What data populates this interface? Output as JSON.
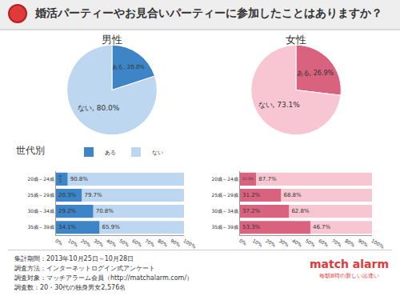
{
  "title": "婚活パーティーやお見合いパーティーに参加したことはありますか？",
  "section_label": "世代別",
  "chart_data": [
    {
      "type": "pie",
      "title": "男性",
      "categories": [
        "ある",
        "ない"
      ],
      "values": [
        20.0,
        80.0
      ],
      "value_labels": [
        "ある, 20.0%",
        "ない, 80.0%"
      ],
      "colors": [
        "#3d85c6",
        "#bcd7ef"
      ],
      "data_labels": true
    },
    {
      "type": "pie",
      "title": "女性",
      "categories": [
        "ある",
        "ない"
      ],
      "values": [
        26.9,
        73.1
      ],
      "value_labels": [
        "ある, 26.9%",
        "ない, 73.1%"
      ],
      "colors": [
        "#d9627e",
        "#f7c6d2"
      ],
      "data_labels": true
    },
    {
      "type": "bar",
      "orientation": "horizontal",
      "stacked": true,
      "categories": [
        "20歳～24歳",
        "25歳～29歳",
        "30歳～34歳",
        "35歳～39歳"
      ],
      "series": [
        {
          "name": "ある",
          "color": "#3d85c6",
          "values": [
            9.2,
            20.3,
            29.2,
            34.1
          ],
          "value_labels": [
            "9.2%",
            "20.3%",
            "29.2%",
            "34.1%"
          ]
        },
        {
          "name": "ない",
          "color": "#bcd7ef",
          "values": [
            90.8,
            79.7,
            70.8,
            65.9
          ],
          "value_labels": [
            "90.8%",
            "79.7%",
            "70.8%",
            "65.9%"
          ]
        }
      ],
      "xlim": [
        0,
        100
      ],
      "xticks": [
        {
          "value": 0,
          "label": "0%"
        },
        {
          "value": 10,
          "label": "10%"
        },
        {
          "value": 20,
          "label": "20%"
        },
        {
          "value": 30,
          "label": "30%"
        },
        {
          "value": 40,
          "label": "40%"
        },
        {
          "value": 50,
          "label": "50%"
        },
        {
          "value": 60,
          "label": "60%"
        },
        {
          "value": 70,
          "label": "70%"
        },
        {
          "value": 80,
          "label": "80%"
        },
        {
          "value": 90,
          "label": "90%"
        },
        {
          "value": 100,
          "label": "100%"
        }
      ],
      "grid": false,
      "legend": "top",
      "data_labels": true
    },
    {
      "type": "bar",
      "orientation": "horizontal",
      "stacked": true,
      "categories": [
        "20歳～24歳",
        "25歳～29歳",
        "30歳～34歳",
        "35歳～39歳"
      ],
      "series": [
        {
          "name": "ある",
          "color": "#d9627e",
          "values": [
            12.3,
            31.2,
            37.2,
            53.3
          ],
          "value_labels": [
            "12.3%",
            "31.2%",
            "37.2%",
            "53.3%"
          ]
        },
        {
          "name": "ない",
          "color": "#f7c6d2",
          "values": [
            87.7,
            68.8,
            62.8,
            46.7
          ],
          "value_labels": [
            "87.7%",
            "68.8%",
            "62.8%",
            "46.7%"
          ]
        }
      ],
      "xlim": [
        0,
        100
      ],
      "xticks": [
        {
          "value": 0,
          "label": "0%"
        },
        {
          "value": 10,
          "label": "10%"
        },
        {
          "value": 20,
          "label": "20%"
        },
        {
          "value": 30,
          "label": "30%"
        },
        {
          "value": 40,
          "label": "40%"
        },
        {
          "value": 50,
          "label": "50%"
        },
        {
          "value": 60,
          "label": "60%"
        },
        {
          "value": 70,
          "label": "70%"
        },
        {
          "value": 80,
          "label": "80%"
        },
        {
          "value": 90,
          "label": "90%"
        },
        {
          "value": 100,
          "label": "100%"
        }
      ],
      "grid": false,
      "data_labels": true
    }
  ],
  "footer": [
    "集計期間：2013年10月25日～10月28日",
    "調査方法：インターネットログイン式アンケート",
    "調査対象：マッチアラーム会員（http://matchalarm.com/）",
    "調査数：20・30代の独身男女2,576名"
  ],
  "logo": {
    "name": "match alarm",
    "tagline": "毎朝8時の新しい出逢い"
  }
}
